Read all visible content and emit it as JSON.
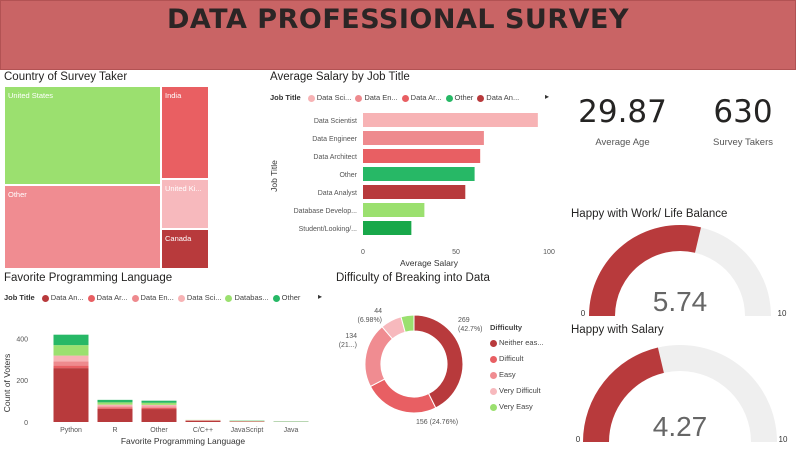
{
  "header": {
    "title": "DATA PROFESSIONAL SURVEY"
  },
  "country": {
    "title": "Country of Survey Taker",
    "tiles": [
      {
        "label": "United States",
        "color": "#9be06f"
      },
      {
        "label": "India",
        "color": "#e95f62"
      },
      {
        "label": "Other",
        "color": "#f08c91"
      },
      {
        "label": "United Ki...",
        "color": "#f7b9bd"
      },
      {
        "label": "Canada",
        "color": "#b83a3c"
      }
    ]
  },
  "salary": {
    "title": "Average Salary by Job Title",
    "legend_title": "Job Title",
    "legend": [
      {
        "label": "Data Sci...",
        "color": "#f7b3b5"
      },
      {
        "label": "Data En...",
        "color": "#ee8a8e"
      },
      {
        "label": "Data Ar...",
        "color": "#e85f63"
      },
      {
        "label": "Other",
        "color": "#27b866"
      },
      {
        "label": "Data An...",
        "color": "#b83a3c"
      }
    ],
    "ylabel": "Job Title",
    "xlabel": "Average Salary",
    "xticks": [
      "0",
      "50",
      "100"
    ]
  },
  "kpis": {
    "age": {
      "value": "29.87",
      "label": "Average Age"
    },
    "takers": {
      "value": "630",
      "label": "Survey Takers"
    }
  },
  "worklife": {
    "title": "Happy with Work/ Life Balance",
    "value": "5.74",
    "min": "0",
    "max": "10",
    "level": 0.574
  },
  "happysalary": {
    "title": "Happy with Salary",
    "value": "4.27",
    "min": "0",
    "max": "10",
    "level": 0.427
  },
  "language": {
    "title": "Favorite Programming Language",
    "legend_title": "Job Title",
    "legend": [
      {
        "label": "Data An...",
        "color": "#b83a3c"
      },
      {
        "label": "Data Ar...",
        "color": "#e85f63"
      },
      {
        "label": "Data En...",
        "color": "#ee8a8e"
      },
      {
        "label": "Data Sci...",
        "color": "#f7b3b5"
      },
      {
        "label": "Databas...",
        "color": "#9be06f"
      },
      {
        "label": "Other",
        "color": "#27b866"
      }
    ],
    "ylabel": "Count of Voters",
    "xlabel": "Favorite Programming Language",
    "yticks": [
      "0",
      "200",
      "400"
    ]
  },
  "difficulty": {
    "title": "Difficulty of Breaking into Data",
    "legend_title": "Difficulty",
    "legend": [
      {
        "label": "Neither eas...",
        "color": "#b83a3c"
      },
      {
        "label": "Difficult",
        "color": "#e85f63"
      },
      {
        "label": "Easy",
        "color": "#f08c91"
      },
      {
        "label": "Very Difficult",
        "color": "#f7b9bd"
      },
      {
        "label": "Very Easy",
        "color": "#9be06f"
      }
    ]
  },
  "chart_data": [
    {
      "type": "bar",
      "orientation": "horizontal",
      "title": "Average Salary by Job Title",
      "categories": [
        "Data Scientist",
        "Data Engineer",
        "Data Architect",
        "Other",
        "Data Analyst",
        "Database Develop...",
        "Student/Looking/..."
      ],
      "values": [
        94,
        65,
        63,
        60,
        55,
        33,
        26
      ],
      "colors": [
        "#f7b3b5",
        "#ee8a8e",
        "#e85f63",
        "#27b866",
        "#b83a3c",
        "#9be06f",
        "#18a84a"
      ],
      "xlabel": "Average Salary",
      "ylabel": "Job Title",
      "xlim": [
        0,
        100
      ]
    },
    {
      "type": "bar",
      "stacked": true,
      "title": "Favorite Programming Language",
      "categories": [
        "Python",
        "R",
        "Other",
        "C/C++",
        "JavaScript",
        "Java"
      ],
      "series": [
        {
          "name": "Data An...",
          "color": "#b83a3c",
          "values": [
            258,
            63,
            62,
            6,
            2,
            1
          ]
        },
        {
          "name": "Data Ar...",
          "color": "#e85f63",
          "values": [
            12,
            6,
            6,
            1,
            0,
            0
          ]
        },
        {
          "name": "Data En...",
          "color": "#ee8a8e",
          "values": [
            20,
            6,
            6,
            1,
            1,
            0
          ]
        },
        {
          "name": "Data Sci...",
          "color": "#f7b3b5",
          "values": [
            28,
            8,
            8,
            1,
            1,
            0
          ]
        },
        {
          "name": "Databas...",
          "color": "#9be06f",
          "values": [
            50,
            11,
            10,
            1,
            2,
            1
          ]
        },
        {
          "name": "Other",
          "color": "#27b866",
          "values": [
            50,
            12,
            10,
            0,
            1,
            1
          ]
        }
      ],
      "xlabel": "Favorite Programming Language",
      "ylabel": "Count of Voters",
      "ylim": [
        0,
        450
      ]
    },
    {
      "type": "pie",
      "donut": true,
      "title": "Difficulty of Breaking into Data",
      "categories": [
        "Neither easy nor difficult",
        "Difficult",
        "Easy",
        "Very Difficult",
        "Very Easy"
      ],
      "values": [
        269,
        156,
        134,
        44,
        27
      ],
      "colors": [
        "#b83a3c",
        "#e85f63",
        "#f08c91",
        "#f7b9bd",
        "#9be06f"
      ],
      "labels": [
        {
          "line1": "269",
          "line2": "(42.7%)"
        },
        {
          "line1": "156 (24.76%)",
          "line2": ""
        },
        {
          "line1": "134",
          "line2": "(21...)"
        },
        {
          "line1": "44",
          "line2": "(6.98%)"
        },
        {
          "line1": "",
          "line2": ""
        }
      ]
    }
  ]
}
